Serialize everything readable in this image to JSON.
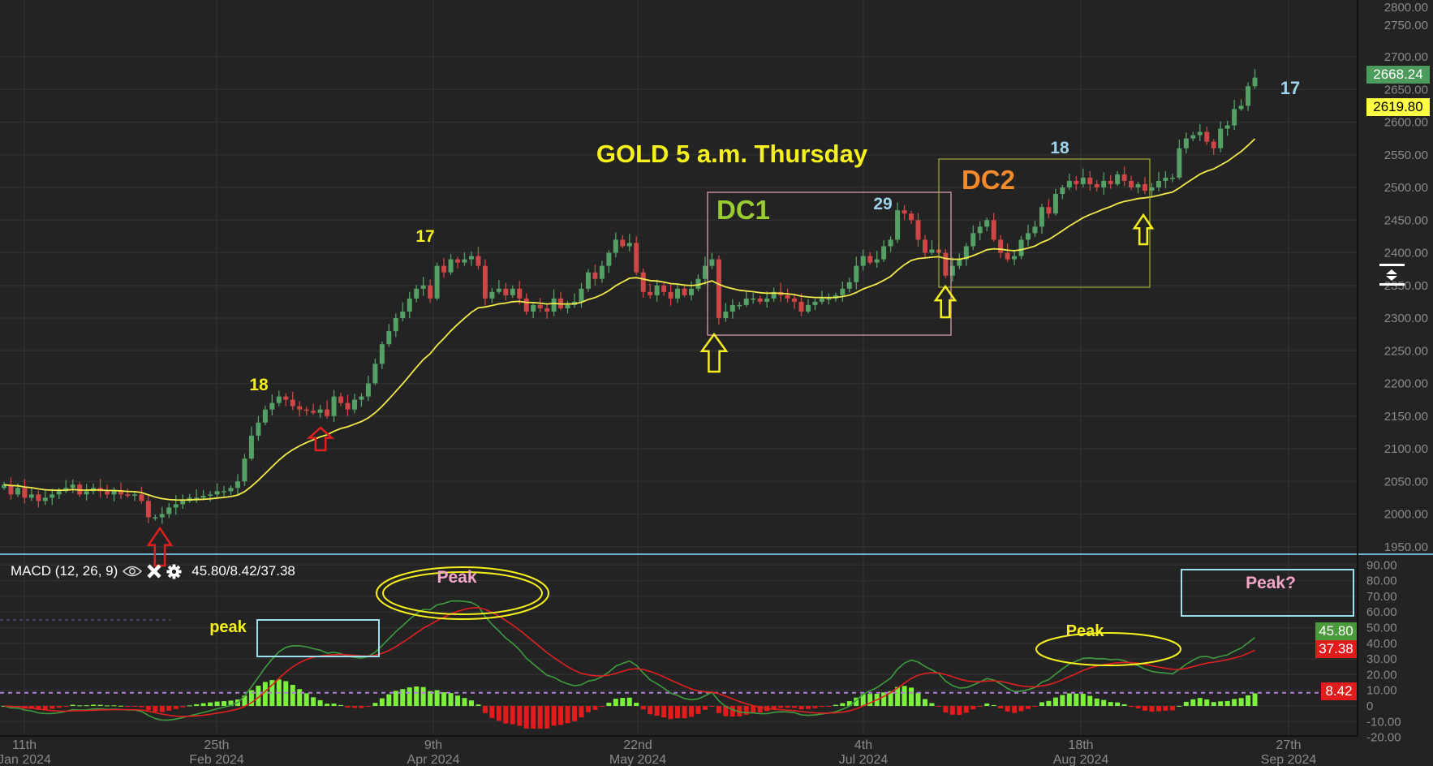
{
  "colors": {
    "background": "#232323",
    "candle_up": "#55a065",
    "candle_down": "#cf4646",
    "moving_average": "#f2ea4a",
    "macd_line": "#3f9b3f",
    "signal_line": "#e02020",
    "histogram_up": "#7df03e",
    "histogram_down": "#e31b1b",
    "pane_separator": "#6fb3d2"
  },
  "annotations": {
    "title": "GOLD 5 a.m. Thursday",
    "label_17_apr": "17",
    "label_18_mar": "18",
    "dc1": "DC1",
    "label_29": "29",
    "dc2": "DC2",
    "label_18_aug": "18",
    "label_17_sep": "17",
    "macd_peak_small": "peak",
    "macd_peak_apr": "Peak",
    "macd_peak_aug": "Peak",
    "macd_peak_question": "Peak?"
  },
  "macd_header": {
    "label": "MACD (12, 26, 9)",
    "values": "45.80/8.42/37.38",
    "icons": [
      "eye-icon",
      "close-icon",
      "gear-icon"
    ]
  },
  "badges": {
    "last_price": "2668.24",
    "ma_value": "2619.80",
    "macd_value": "45.80",
    "signal_value": "37.38",
    "histogram_value": "8.42"
  },
  "chart_data": {
    "type": "candlestick",
    "title": "GOLD 5 a.m. Thursday",
    "price_axis": {
      "range": [
        1950,
        2800
      ],
      "ticks": [
        "2800.00",
        "2750.00",
        "2700.00",
        "2650.00",
        "2600.00",
        "2550.00",
        "2500.00",
        "2450.00",
        "2400.00",
        "2350.00",
        "2300.00",
        "2250.00",
        "2200.00",
        "2150.00",
        "2100.00",
        "2050.00",
        "2000.00",
        "1950.00"
      ]
    },
    "macd_axis": {
      "range": [
        -20,
        90
      ],
      "ticks": [
        "90.00",
        "80.00",
        "70.00",
        "60.00",
        "50.00",
        "40.00",
        "30.00",
        "20.00",
        "10.00",
        "0",
        "-10.00",
        "-20.00"
      ]
    },
    "x_axis": {
      "labels": [
        {
          "day": "11th",
          "month": "Jan 2024"
        },
        {
          "day": "25th",
          "month": "Feb 2024"
        },
        {
          "day": "9th",
          "month": "Apr 2024"
        },
        {
          "day": "22nd",
          "month": "May 2024"
        },
        {
          "day": "4th",
          "month": "Jul 2024"
        },
        {
          "day": "18th",
          "month": "Aug 2024"
        },
        {
          "day": "27th",
          "month": "Sep 2024"
        }
      ]
    },
    "indicators": {
      "moving_average": "EMA 20",
      "macd": {
        "fast": 12,
        "slow": 26,
        "signal": 9,
        "macd": 45.8,
        "signal_value": 37.38,
        "histogram": 8.42
      }
    },
    "grid": true,
    "close": [
      2045,
      2030,
      2040,
      2025,
      2030,
      2020,
      2025,
      2030,
      2035,
      2040,
      2045,
      2030,
      2035,
      2040,
      2035,
      2030,
      2035,
      2030,
      2028,
      2030,
      2020,
      1995,
      1995,
      2000,
      2010,
      2015,
      2020,
      2025,
      2025,
      2028,
      2030,
      2035,
      2035,
      2040,
      2050,
      2085,
      2120,
      2140,
      2160,
      2170,
      2180,
      2175,
      2165,
      2160,
      2158,
      2155,
      2160,
      2150,
      2180,
      2170,
      2160,
      2175,
      2180,
      2200,
      2230,
      2260,
      2280,
      2300,
      2310,
      2330,
      2345,
      2350,
      2330,
      2380,
      2370,
      2390,
      2385,
      2390,
      2395,
      2380,
      2330,
      2340,
      2345,
      2335,
      2345,
      2330,
      2310,
      2320,
      2315,
      2310,
      2330,
      2315,
      2320,
      2325,
      2345,
      2370,
      2360,
      2380,
      2400,
      2420,
      2410,
      2415,
      2370,
      2340,
      2335,
      2350,
      2340,
      2330,
      2345,
      2335,
      2345,
      2360,
      2380,
      2390,
      2300,
      2310,
      2320,
      2320,
      2330,
      2330,
      2325,
      2330,
      2340,
      2335,
      2330,
      2325,
      2310,
      2320,
      2325,
      2330,
      2330,
      2335,
      2345,
      2355,
      2380,
      2395,
      2385,
      2390,
      2410,
      2420,
      2465,
      2460,
      2450,
      2420,
      2400,
      2405,
      2400,
      2365,
      2380,
      2390,
      2410,
      2430,
      2440,
      2450,
      2420,
      2400,
      2390,
      2395,
      2420,
      2430,
      2440,
      2470,
      2460,
      2490,
      2500,
      2510,
      2505,
      2515,
      2505,
      2500,
      2510,
      2505,
      2520,
      2510,
      2500,
      2505,
      2495,
      2500,
      2510,
      2515,
      2515,
      2560,
      2575,
      2580,
      2585,
      2570,
      2560,
      2590,
      2595,
      2620,
      2625,
      2655,
      2668.24
    ]
  }
}
